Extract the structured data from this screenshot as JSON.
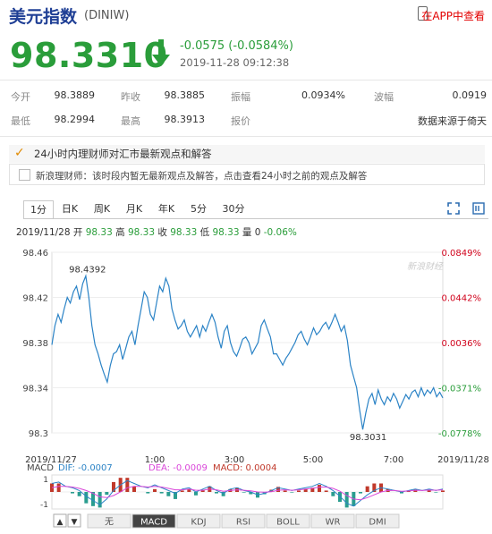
{
  "header": {
    "title": "美元指数",
    "code": "(DINIW)",
    "app_link": "在APP中查看"
  },
  "quote": {
    "price": "98.3310",
    "change": "-0.0575 (-0.0584%)",
    "timestamp": "2019-11-28 09:12:38",
    "direction_icon": "down-arrow-icon",
    "color_down": "#2a9d3a"
  },
  "stats": {
    "open_label": "今开",
    "open": "98.3889",
    "prev_close_label": "昨收",
    "prev_close": "98.3885",
    "amplitude_label": "振幅",
    "amplitude": "0.0934%",
    "volatility_label": "波幅",
    "volatility": "0.0919",
    "low_label": "最低",
    "low": "98.2994",
    "high_label": "最高",
    "high": "98.3913",
    "quote_label": "报价",
    "quote_source": "数据来源于倚天"
  },
  "notice": {
    "text": "24小时内理财师对汇市最新观点和解答",
    "analyst_text": "新浪理财师：该时段内暂无最新观点及解答，点击查看24小时之前的观点及解答"
  },
  "chart_tabs": [
    "1分",
    "日K",
    "周K",
    "月K",
    "年K",
    "5分",
    "30分"
  ],
  "chart_info": {
    "date": "2019/11/28",
    "open_label": "开",
    "open": "98.33",
    "high_label": "高",
    "high": "98.33",
    "close_label": "收",
    "close": "98.33",
    "low_label": "低",
    "low": "98.33",
    "volume_label": "量",
    "volume": "0",
    "pct": "-0.06%"
  },
  "indicator_tabs": [
    "无",
    "MACD",
    "KDJ",
    "RSI",
    "BOLL",
    "WR",
    "DMI"
  ],
  "macd_info": {
    "name": "MACD",
    "dif": "DIF: -0.0007",
    "dea": "DEA: -0.0009",
    "macd": "MACD: 0.0004"
  },
  "chart_data": {
    "type": "line",
    "title": "",
    "watermark": "新浪财经",
    "x_ticks": [
      "2019/11/27",
      "1:00",
      "3:00",
      "5:00",
      "7:00",
      "2019/11/28"
    ],
    "y_ticks_left": [
      "98.46",
      "98.42",
      "98.38",
      "98.34",
      "98.3"
    ],
    "y_ticks_right": [
      "0.0849%",
      "0.0442%",
      "0.0036%",
      "-0.0371%",
      "-0.0778%"
    ],
    "ylim": [
      98.3,
      98.46
    ],
    "annotation_high": "98.4392",
    "annotation_low": "98.3031",
    "series": [
      {
        "values": [
          98.378,
          98.395,
          98.405,
          98.398,
          98.41,
          98.42,
          98.415,
          98.425,
          98.43,
          98.418,
          98.432,
          98.439,
          98.42,
          98.395,
          98.378,
          98.37,
          98.36,
          98.352,
          98.345,
          98.36,
          98.37,
          98.372,
          98.378,
          98.365,
          98.375,
          98.385,
          98.39,
          98.378,
          98.395,
          98.41,
          98.425,
          98.42,
          98.405,
          98.4,
          98.415,
          98.43,
          98.425,
          98.437,
          98.43,
          98.41,
          98.4,
          98.392,
          98.395,
          98.4,
          98.39,
          98.385,
          98.39,
          98.395,
          98.385,
          98.395,
          98.39,
          98.398,
          98.405,
          98.398,
          98.385,
          98.375,
          98.39,
          98.395,
          98.38,
          98.372,
          98.368,
          98.375,
          98.383,
          98.385,
          98.38,
          98.37,
          98.375,
          98.38,
          98.395,
          98.4,
          98.392,
          98.385,
          98.37,
          98.37,
          98.365,
          98.36,
          98.366,
          98.37,
          98.375,
          98.38,
          98.387,
          98.39,
          98.383,
          98.378,
          98.385,
          98.393,
          98.387,
          98.39,
          98.395,
          98.398,
          98.392,
          98.398,
          98.405,
          98.398,
          98.39,
          98.395,
          98.382,
          98.36,
          98.35,
          98.34,
          98.32,
          98.303,
          98.318,
          98.33,
          98.335,
          98.325,
          98.338,
          98.33,
          98.325,
          98.332,
          98.328,
          98.335,
          98.33,
          98.322,
          98.328,
          98.334,
          98.33,
          98.336,
          98.338,
          98.332,
          98.34,
          98.333,
          98.338,
          98.335,
          98.34,
          98.332,
          98.336,
          98.331
        ],
        "color": "#2b83c6"
      }
    ],
    "macd_dif": [
      0.6,
      0.7,
      0.4,
      0.3,
      0.1,
      -0.3,
      -0.6,
      -0.9,
      -0.5,
      0.1,
      0.5,
      0.8,
      0.6,
      0.4,
      0.3,
      0.5,
      0.3,
      0.1,
      -0.1,
      0.2,
      0.3,
      0.0,
      0.2,
      0.4,
      0.1,
      -0.1,
      0.2,
      0.3,
      0.1,
      0.0,
      -0.2,
      -0.1,
      0.1,
      0.3,
      0.2,
      0.1,
      0.2,
      0.3,
      0.4,
      0.6,
      0.4,
      0.1,
      -0.3,
      -0.8,
      -1.0,
      -0.6,
      -0.2,
      0.1,
      0.3,
      0.2,
      0.1,
      0.0,
      0.1,
      0.2,
      0.1,
      0.2,
      0.1,
      0.2
    ],
    "macd_dea": [
      0.3,
      0.4,
      0.4,
      0.35,
      0.25,
      0.1,
      -0.1,
      -0.35,
      -0.4,
      -0.25,
      0.0,
      0.3,
      0.4,
      0.4,
      0.35,
      0.4,
      0.35,
      0.25,
      0.15,
      0.15,
      0.2,
      0.12,
      0.12,
      0.2,
      0.15,
      0.05,
      0.1,
      0.15,
      0.12,
      0.08,
      0.0,
      -0.02,
      0.02,
      0.12,
      0.15,
      0.12,
      0.15,
      0.2,
      0.25,
      0.35,
      0.35,
      0.25,
      0.05,
      -0.25,
      -0.5,
      -0.55,
      -0.4,
      -0.2,
      0.0,
      0.1,
      0.1,
      0.05,
      0.07,
      0.12,
      0.1,
      0.13,
      0.12,
      0.15
    ],
    "dif_color": "#2b83c6",
    "dea_color": "#d946d9",
    "bar_up_color": "#c0392b",
    "bar_down_color": "#2a9d8f",
    "macd_y_ticks": [
      "1",
      "-1"
    ]
  }
}
